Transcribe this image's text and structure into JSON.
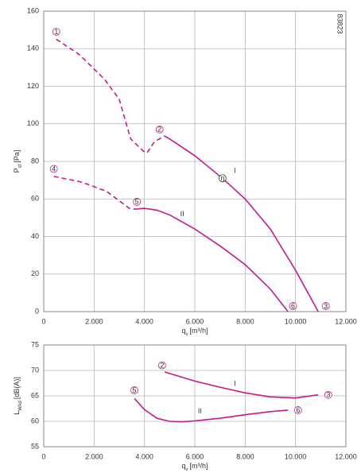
{
  "chart_data": [
    {
      "type": "line",
      "note": "83823",
      "x_label": {
        "main": "q",
        "sub": "v",
        "unit": "[m³/h]"
      },
      "y_label": {
        "main": "P",
        "sub": "sf",
        "unit": "[Pa]"
      },
      "xlim": [
        0,
        12000
      ],
      "xticks": [
        0,
        {
          "value": 2000,
          "label": "2.000"
        },
        {
          "value": 4000,
          "label": "4.000"
        },
        {
          "value": 6000,
          "label": "6.000"
        },
        {
          "value": 8000,
          "label": "8.000"
        },
        {
          "value": 10000,
          "label": "10.000"
        },
        {
          "value": 12000,
          "label": "12.000"
        }
      ],
      "ylim": [
        0,
        160
      ],
      "yticks": [
        0,
        20,
        40,
        60,
        80,
        100,
        120,
        140,
        160
      ],
      "grid": true,
      "series": [
        {
          "color": "#c8198c",
          "style": "dashed",
          "x": [
            500,
            1400,
            2400,
            3000,
            3450,
            3950,
            4100,
            4400,
            4800
          ],
          "values": [
            145,
            137,
            124,
            113,
            92,
            85.5,
            84.5,
            90.5,
            93.5
          ]
        },
        {
          "color": "#c8198c",
          "style": "solid",
          "x": [
            4800,
            5000,
            6000,
            7100,
            8000,
            9000,
            10000,
            10900
          ],
          "values": [
            93.5,
            92,
            83,
            71,
            60,
            44,
            22,
            0
          ]
        },
        {
          "color": "#c8198c",
          "style": "dashed",
          "x": [
            400,
            1500,
            2500,
            3000,
            3400,
            3600
          ],
          "values": [
            72,
            69,
            64,
            59,
            55,
            54.5
          ]
        },
        {
          "color": "#c8198c",
          "style": "solid",
          "x": [
            3600,
            4000,
            4500,
            5000,
            6000,
            7000,
            8000,
            9000,
            9700
          ],
          "values": [
            54.5,
            55,
            54,
            51.5,
            44,
            35,
            25,
            12,
            0
          ]
        }
      ],
      "annotations": [
        {
          "text": "1",
          "circled": true,
          "x": 500,
          "y": 149
        },
        {
          "text": "2",
          "circled": true,
          "x": 4600,
          "y": 97
        },
        {
          "text": "3",
          "circled": true,
          "x": 11200,
          "y": 3
        },
        {
          "text": "4",
          "circled": true,
          "x": 400,
          "y": 76
        },
        {
          "text": "5",
          "circled": true,
          "x": 3700,
          "y": 58.5
        },
        {
          "text": "6",
          "circled": true,
          "x": 9900,
          "y": 3
        },
        {
          "text": "η",
          "circled": true,
          "x": 7100,
          "y": 71
        },
        {
          "text": "I",
          "circled": false,
          "x": 7600,
          "y": 75
        },
        {
          "text": "II",
          "circled": false,
          "x": 5500,
          "y": 52
        }
      ]
    },
    {
      "type": "line",
      "x_label": {
        "main": "q",
        "sub": "v",
        "unit": "[m³/h]"
      },
      "y_label": {
        "main": "L",
        "sub": "WAd",
        "unit": "[dB(A)]"
      },
      "xlim": [
        0,
        12000
      ],
      "xticks": [
        0,
        {
          "value": 2000,
          "label": "2.000"
        },
        {
          "value": 4000,
          "label": "4.000"
        },
        {
          "value": 6000,
          "label": "6.000"
        },
        {
          "value": 8000,
          "label": "8.000"
        },
        {
          "value": 10000,
          "label": "10.000"
        },
        {
          "value": 12000,
          "label": "12.000"
        }
      ],
      "ylim": [
        55,
        75
      ],
      "yticks": [
        55,
        60,
        65,
        70,
        75
      ],
      "grid": true,
      "series": [
        {
          "color": "#c8198c",
          "style": "solid",
          "x": [
            4800,
            6000,
            7000,
            8000,
            9000,
            10000,
            10900
          ],
          "values": [
            69.7,
            67.9,
            66.7,
            65.6,
            64.8,
            64.6,
            65.2
          ]
        },
        {
          "color": "#c8198c",
          "style": "solid",
          "x": [
            3600,
            4000,
            4500,
            5000,
            5500,
            6000,
            7000,
            8000,
            9000,
            9700
          ],
          "values": [
            64.5,
            62.3,
            60.6,
            60,
            59.9,
            60.1,
            60.6,
            61.3,
            61.9,
            62.2
          ]
        }
      ],
      "annotations": [
        {
          "text": "2",
          "circled": true,
          "x": 4700,
          "y": 71
        },
        {
          "text": "3",
          "circled": true,
          "x": 11300,
          "y": 65.2
        },
        {
          "text": "5",
          "circled": true,
          "x": 3600,
          "y": 66.1
        },
        {
          "text": "6",
          "circled": true,
          "x": 10100,
          "y": 62.2
        },
        {
          "text": "I",
          "circled": false,
          "x": 7600,
          "y": 67.4
        },
        {
          "text": "II",
          "circled": false,
          "x": 6200,
          "y": 62
        }
      ]
    }
  ]
}
